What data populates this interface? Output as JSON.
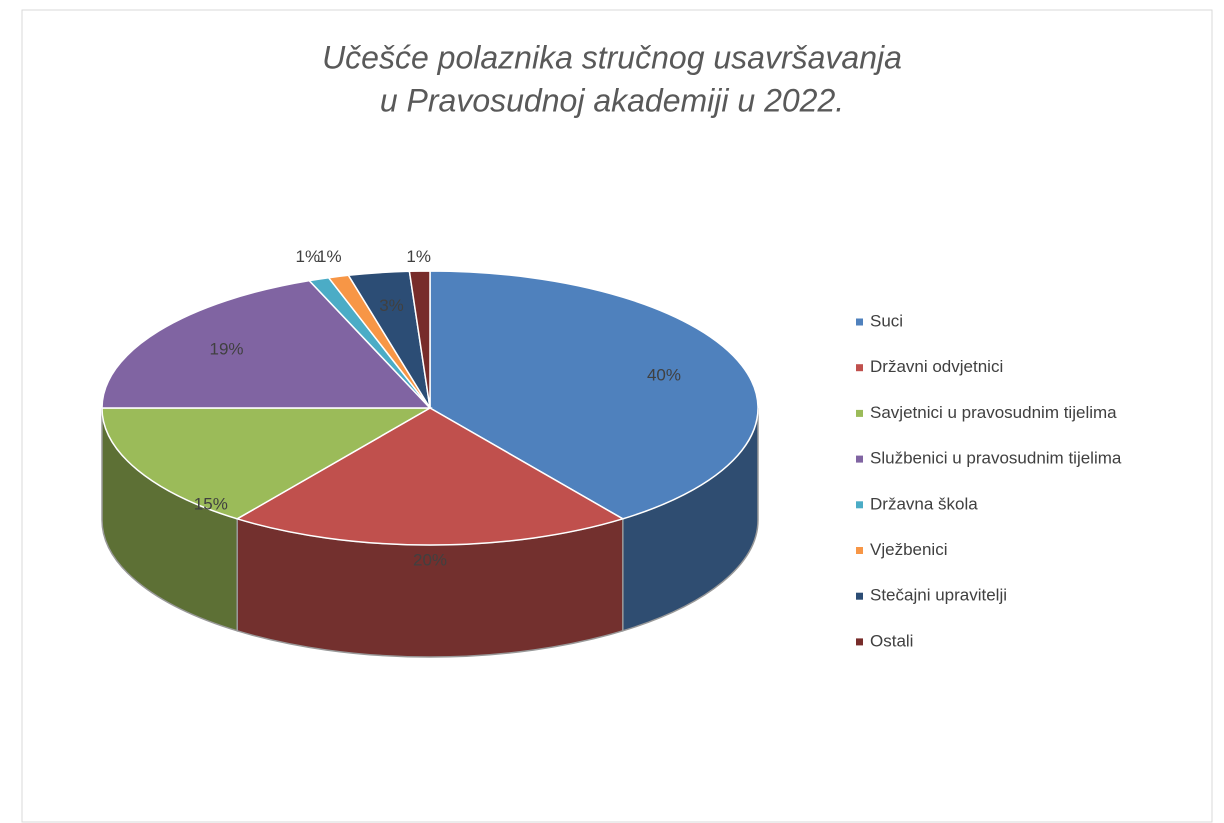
{
  "chart_data": {
    "type": "pie3d",
    "title": [
      "Učešće polaznika stručnog usavršavanja",
      "u Pravosudnoj akademiji u 2022."
    ],
    "categories": [
      "Suci",
      "Državni odvjetnici",
      "Savjetnici u pravosudnim tijelima",
      "Službenici u pravosudnim tijelima",
      "Državna škola",
      "Vježbenici",
      "Stečajni upravitelji",
      "Ostali"
    ],
    "values": [
      40,
      20,
      15,
      19,
      1,
      1,
      3,
      1
    ],
    "value_labels": [
      "40%",
      "20%",
      "15%",
      "19%",
      "1%",
      "1%",
      "3%",
      "1%"
    ],
    "colors": [
      "#4f81bd",
      "#c0504d",
      "#9bbb59",
      "#8064a2",
      "#4bacc6",
      "#f79646",
      "#2c4d75",
      "#772c2a"
    ],
    "legend": "right"
  }
}
